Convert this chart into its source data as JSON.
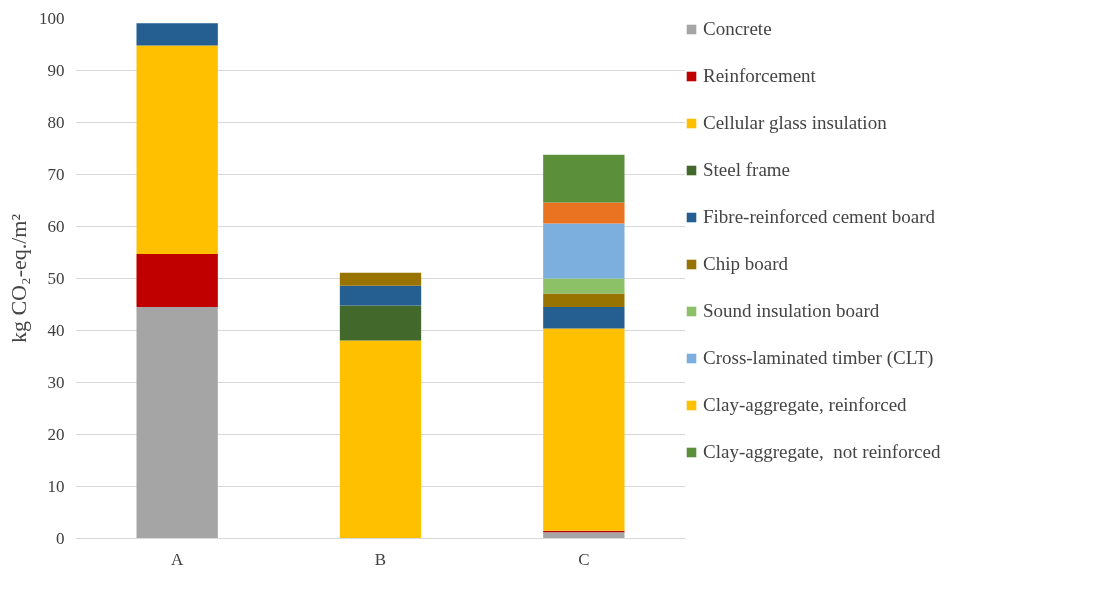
{
  "chart_data": {
    "type": "bar",
    "stacked": true,
    "ylabel": "kg CO₂-eq./m²",
    "categories": [
      "A",
      "B",
      "C"
    ],
    "ylim": [
      0,
      100
    ],
    "yticks": [
      0,
      10,
      20,
      30,
      40,
      50,
      60,
      70,
      80,
      90,
      100
    ],
    "grid": "y",
    "legend": "right",
    "series": [
      {
        "name": "Concrete",
        "color": "#a5a5a5",
        "values": [
          44.5,
          null,
          1.2
        ]
      },
      {
        "name": "Reinforcement",
        "color": "#c00000",
        "values": [
          10.2,
          null,
          0.3
        ]
      },
      {
        "name": "Cellular glass insulation",
        "color": "#ffc000",
        "values": [
          40.1,
          38.1,
          38.9
        ]
      },
      {
        "name": "Steel frame",
        "color": "#43682b",
        "values": [
          null,
          6.7,
          null
        ]
      },
      {
        "name": "Fibre-reinforced cement board",
        "color": "#255e91",
        "values": [
          4.3,
          3.8,
          4.1
        ]
      },
      {
        "name": "Chip board",
        "color": "#997300",
        "values": [
          null,
          2.5,
          2.6
        ]
      },
      {
        "name": "Sound insulation board",
        "color": "#8cc168",
        "values": [
          null,
          null,
          2.9
        ]
      },
      {
        "name": "Cross-laminated timber (CLT)",
        "color": "#7cafdd",
        "values": [
          null,
          null,
          10.6
        ]
      },
      {
        "name": "Clay-aggregate, reinforced",
        "color": "#ffc000",
        "values": [
          null,
          null,
          null
        ]
      },
      {
        "color": "#e97320",
        "values": [
          null,
          null,
          4.0
        ]
      },
      {
        "name": "Clay-aggregate,  not reinforced",
        "color": "#5b8f39",
        "values": [
          null,
          null,
          9.2
        ]
      }
    ]
  }
}
